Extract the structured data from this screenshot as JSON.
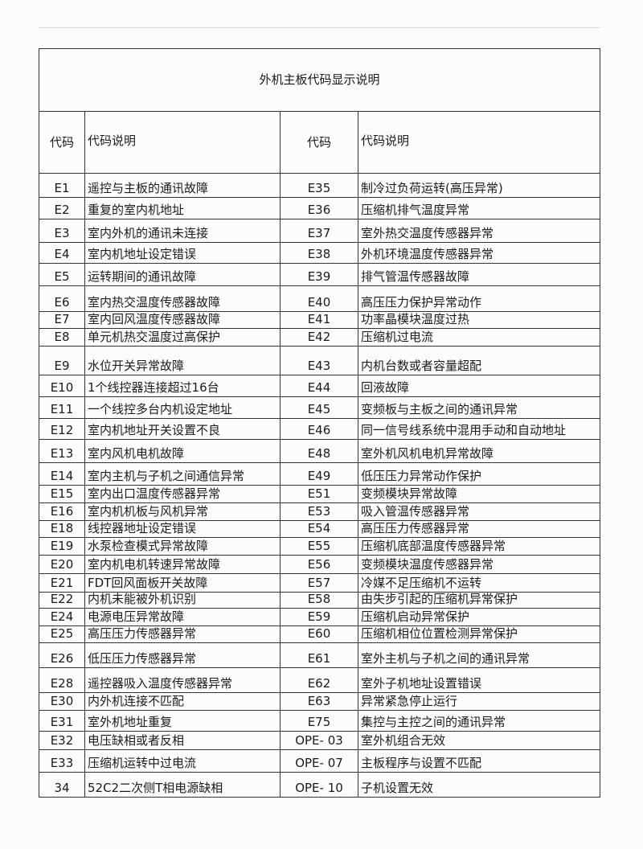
{
  "title": "外机主板代码显示说明",
  "headers": {
    "code": "代码",
    "desc": "代码说明"
  },
  "rows": [
    [
      "E1",
      "遥控与主板的通讯故障",
      "E35",
      "制冷过负荷运转(高压异常)"
    ],
    [
      "E2",
      "重复的室内机地址",
      "E36",
      "压缩机排气温度异常"
    ],
    [
      "E3",
      "室内外机的通讯未连接",
      "E37",
      "室外热交温度传感器异常"
    ],
    [
      "E4",
      "室内机地址设定错误",
      "E38",
      "外机环境温度传感器异常"
    ],
    [
      "E5",
      "运转期间的通讯故障",
      "E39",
      "排气管温传感器故障"
    ],
    [
      "E6",
      "室内热交温度传感器故障",
      "E40",
      "高压压力保护异常动作"
    ],
    [
      "E7",
      "室内回风温度传感器故障",
      "E41",
      "功率晶模块温度过热"
    ],
    [
      "E8",
      "单元机热交温度过高保护",
      "E42",
      "压缩机过电流"
    ],
    [
      "E9",
      "水位开关异常故障",
      "E43",
      "内机台数或者容量超配"
    ],
    [
      "E10",
      "1个线控器连接超过16台",
      "E44",
      "回液故障"
    ],
    [
      "E11",
      "一个线控多台内机设定地址",
      "E45",
      "变频板与主板之间的通讯异常"
    ],
    [
      "E12",
      "室内机地址开关设置不良",
      "E46",
      "同一信号线系统中混用手动和自动地址"
    ],
    [
      "E13",
      "室内风机电机故障",
      "E48",
      "室外机风机电机异常故障"
    ],
    [
      "E14",
      "室内主机与子机之间通信异常",
      "E49",
      "低压压力异常动作保护"
    ],
    [
      "E15",
      "室内出口温度传感器异常",
      "E51",
      "变频模块异常故障"
    ],
    [
      "E16",
      "室内机机板与风机异常",
      "E53",
      "吸入管温传感器异常"
    ],
    [
      "E18",
      "线控器地址设定错误",
      "E54",
      "高压压力传感器异常"
    ],
    [
      "E19",
      "水泵检查模式异常故障",
      "E55",
      "压缩机底部温度传感器异常"
    ],
    [
      "E20",
      "室内机电机转速异常故障",
      "E56",
      "变频模块温度传感器异常"
    ],
    [
      "E21",
      "FDT回风面板开关故障",
      "E57",
      "冷媒不足压缩机不运转"
    ],
    [
      "E22",
      "内机未能被外机识别",
      "E58",
      "由失步引起的压缩机异常保护"
    ],
    [
      "E24",
      "电源电压异常故障",
      "E59",
      "压缩机启动异常保护"
    ],
    [
      "E25",
      "高压压力传感器异常",
      "E60",
      "压缩机相位位置检测异常保护"
    ],
    [
      "E26",
      "低压压力传感器异常",
      "E61",
      "室外主机与子机之间的通讯异常"
    ],
    [
      "E28",
      "遥控器吸入温度传感器异常",
      "E62",
      "室外子机地址设置错误"
    ],
    [
      "E30",
      "内外机连接不匹配",
      "E63",
      "异常紧急停止运行"
    ],
    [
      "E31",
      "室外机地址重复",
      "E75",
      "集控与主控之间的通讯异常"
    ],
    [
      "E32",
      "电压缺相或者反相",
      "OPE- 03",
      "室外机组合无效"
    ],
    [
      "E33",
      "压缩机运转中过电流",
      "OPE- 07",
      "主板程序与设置不匹配"
    ],
    [
      "34",
      "52C2二次侧T相电源缺相",
      "OPE- 10",
      "子机设置无效"
    ]
  ]
}
